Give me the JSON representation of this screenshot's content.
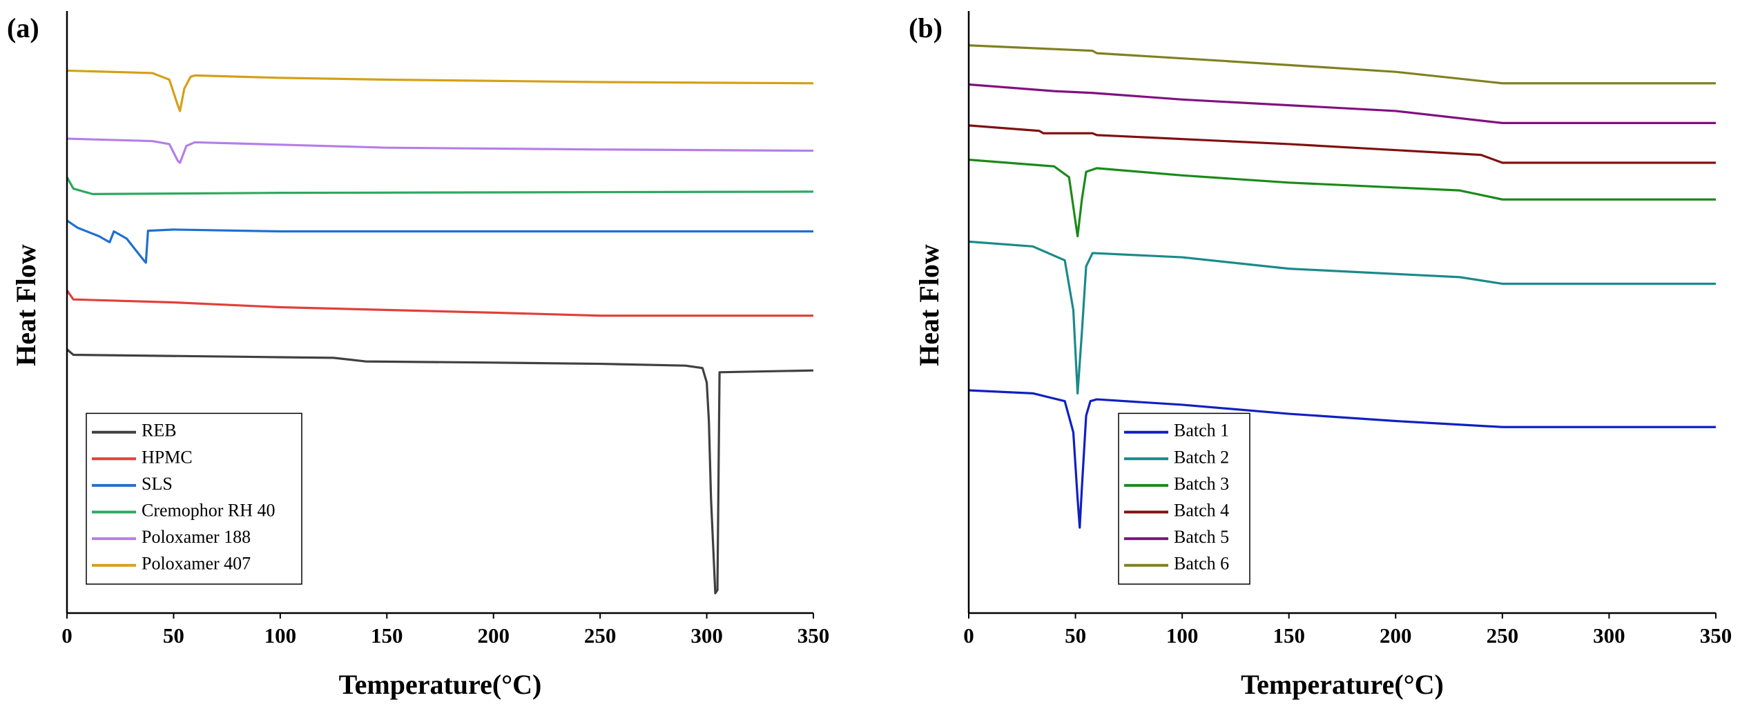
{
  "chart_data": [
    {
      "type": "line",
      "panel_label": "(a)",
      "xlabel": "Temperature(°C)",
      "ylabel": "Heat Flow",
      "xlim": [
        0,
        350
      ],
      "xticks": [
        0,
        50,
        100,
        150,
        200,
        250,
        300,
        350
      ],
      "ylim": [
        0,
        100
      ],
      "legend": "lower left",
      "series": [
        {
          "name": "REB",
          "color": "#404040",
          "x": [
            0,
            3,
            100,
            125,
            140,
            200,
            250,
            290,
            298,
            300,
            301,
            302,
            304,
            305,
            306,
            320,
            350
          ],
          "values": [
            43.8,
            42.9,
            42.5,
            42.4,
            41.8,
            41.6,
            41.4,
            41.1,
            40.7,
            38.3,
            31.9,
            19.0,
            3.3,
            3.8,
            40.0,
            40.1,
            40.3
          ]
        },
        {
          "name": "HPMC",
          "color": "#e0403a",
          "x": [
            0,
            3,
            50,
            100,
            200,
            250,
            350
          ],
          "values": [
            53.6,
            52.1,
            51.6,
            50.8,
            49.9,
            49.4,
            49.4
          ]
        },
        {
          "name": "SLS",
          "color": "#1f6fd0",
          "x": [
            0,
            5,
            15,
            20,
            22,
            28,
            32,
            36,
            37,
            38,
            50,
            100,
            350
          ],
          "values": [
            65.2,
            64.0,
            62.6,
            61.6,
            63.4,
            62.2,
            60.4,
            58.6,
            58.2,
            63.5,
            63.7,
            63.4,
            63.4
          ]
        },
        {
          "name": "Cremophor RH 40",
          "color": "#2ea860",
          "x": [
            0,
            3,
            12,
            100,
            350
          ],
          "values": [
            72.4,
            70.5,
            69.6,
            69.8,
            70.0
          ]
        },
        {
          "name": "Poloxamer 188",
          "color": "#b57ee8",
          "x": [
            0,
            40,
            48,
            52,
            53,
            56,
            60,
            100,
            150,
            250,
            350
          ],
          "values": [
            78.8,
            78.4,
            77.9,
            75.1,
            74.8,
            77.6,
            78.2,
            77.8,
            77.3,
            77.0,
            76.8
          ]
        },
        {
          "name": "Poloxamer 407",
          "color": "#d4a017",
          "x": [
            0,
            40,
            48,
            52,
            53,
            55,
            58,
            60,
            100,
            150,
            250,
            350
          ],
          "values": [
            90.1,
            89.7,
            88.6,
            84.3,
            83.4,
            87.1,
            89.1,
            89.3,
            88.9,
            88.6,
            88.2,
            88.0
          ]
        }
      ]
    },
    {
      "type": "line",
      "panel_label": "(b)",
      "xlabel": "Temperature(°C)",
      "ylabel": "Heat Flow",
      "xlim": [
        0,
        350
      ],
      "xticks": [
        0,
        50,
        100,
        150,
        200,
        250,
        300,
        350
      ],
      "ylim": [
        0,
        100
      ],
      "legend": "lower left",
      "series": [
        {
          "name": "Batch 1",
          "color": "#1020c0",
          "x": [
            0,
            30,
            45,
            49,
            51,
            52,
            53,
            55,
            57,
            60,
            100,
            150,
            200,
            250,
            350
          ],
          "values": [
            37.0,
            36.5,
            35.2,
            30.0,
            19.0,
            14.2,
            20.8,
            32.8,
            35.2,
            35.5,
            34.6,
            33.1,
            31.9,
            30.9,
            30.9
          ]
        },
        {
          "name": "Batch 2",
          "color": "#1a8a8a",
          "x": [
            0,
            30,
            45,
            49,
            51,
            53,
            55,
            58,
            100,
            150,
            230,
            250,
            350
          ],
          "values": [
            61.7,
            60.9,
            58.6,
            50.3,
            36.5,
            46.6,
            57.6,
            59.8,
            59.1,
            57.2,
            55.8,
            54.7,
            54.7
          ]
        },
        {
          "name": "Batch 3",
          "color": "#1a8a1a",
          "x": [
            0,
            40,
            47,
            50,
            51,
            53,
            55,
            60,
            100,
            150,
            230,
            250,
            350
          ],
          "values": [
            75.3,
            74.2,
            72.4,
            65.0,
            62.6,
            68.7,
            73.3,
            73.9,
            72.7,
            71.5,
            70.2,
            68.7,
            68.7
          ]
        },
        {
          "name": "Batch 4",
          "color": "#801010",
          "x": [
            0,
            33,
            35,
            58,
            60,
            150,
            240,
            250,
            350
          ],
          "values": [
            81.0,
            80.1,
            79.7,
            79.7,
            79.4,
            77.9,
            76.1,
            74.8,
            74.8
          ]
        },
        {
          "name": "Batch 5",
          "color": "#801080",
          "x": [
            0,
            40,
            58,
            100,
            200,
            250,
            350
          ],
          "values": [
            87.8,
            86.7,
            86.4,
            85.3,
            83.4,
            81.4,
            81.4
          ]
        },
        {
          "name": "Batch 6",
          "color": "#808020",
          "x": [
            0,
            58,
            60,
            120,
            200,
            250,
            350
          ],
          "values": [
            94.3,
            93.4,
            93.0,
            91.7,
            89.9,
            88.0,
            88.0
          ]
        }
      ]
    }
  ]
}
